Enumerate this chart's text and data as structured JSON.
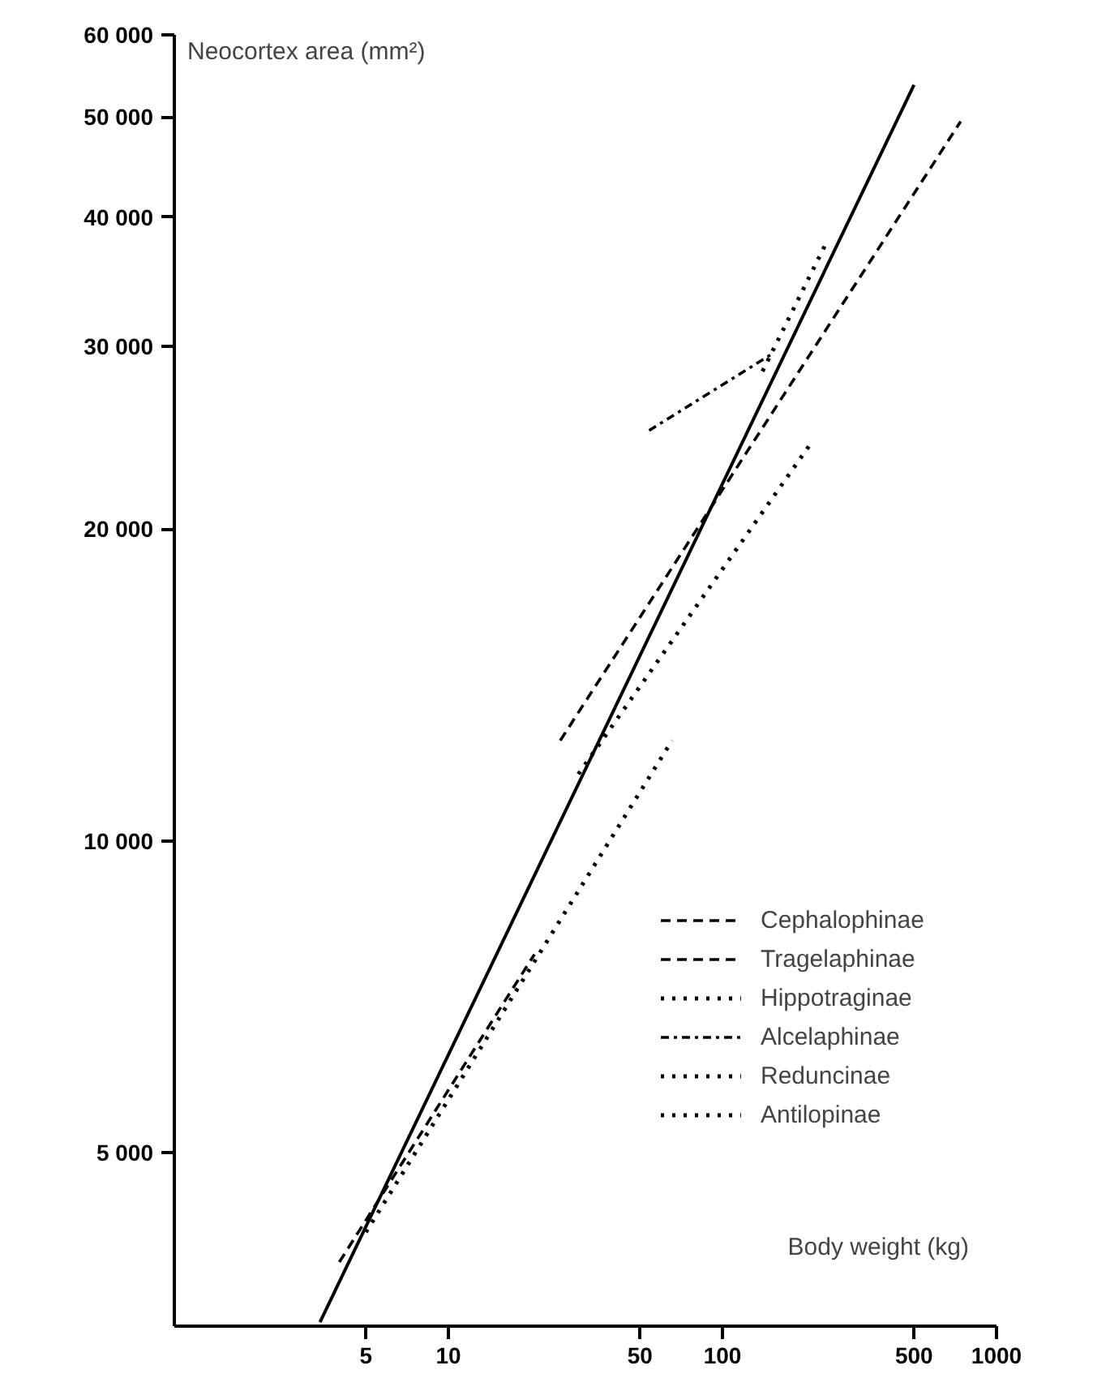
{
  "chart_data": {
    "type": "line",
    "xlabel": "Body weight (kg)",
    "ylabel": "Neocortex area (mm²)",
    "log": "xy",
    "xlim": [
      1,
      1000
    ],
    "ylim": [
      3400,
      60000
    ],
    "xticks": [
      5,
      10,
      50,
      100,
      500,
      1000
    ],
    "yticks": [
      {
        "value": 5000,
        "label": "5 000"
      },
      {
        "value": 10000,
        "label": "10 000"
      },
      {
        "value": 20000,
        "label": "20 000"
      },
      {
        "value": 30000,
        "label": "30 000"
      },
      {
        "value": 40000,
        "label": "40 000"
      },
      {
        "value": 50000,
        "label": "50 000"
      },
      {
        "value": 60000,
        "label": "60 000"
      }
    ],
    "grid": false,
    "legend": "bottom right",
    "series": [
      {
        "color": "#000000",
        "line_style": "solid",
        "x": [
          3.4,
          500
        ],
        "values": [
          3430,
          53700
        ]
      },
      {
        "name": "Cephalophinae",
        "color": "#000000",
        "line_style": "dashed",
        "x": [
          4.0,
          20.6
        ],
        "values": [
          3920,
          7770
        ]
      },
      {
        "name": "Tragelaphinae",
        "color": "#000000",
        "line_style": "dashed",
        "x": [
          25.6,
          740
        ],
        "values": [
          12500,
          49500
        ]
      },
      {
        "name": "Hippotraginae",
        "color": "#000000",
        "line_style": "dotted",
        "x": [
          140,
          237
        ],
        "values": [
          28400,
          37600
        ]
      },
      {
        "name": "Alcelaphinae",
        "color": "#000000",
        "line_style": "dashdot",
        "x": [
          54,
          151
        ],
        "values": [
          24900,
          29500
        ]
      },
      {
        "name": "Reduncinae",
        "color": "#000000",
        "line_style": "dotted",
        "x": [
          29.8,
          208
        ],
        "values": [
          11600,
          24100
        ]
      },
      {
        "name": "Antilopinae",
        "color": "#000000",
        "line_style": "dotted",
        "x": [
          5.0,
          65.5
        ],
        "values": [
          4190,
          12500
        ]
      }
    ]
  }
}
